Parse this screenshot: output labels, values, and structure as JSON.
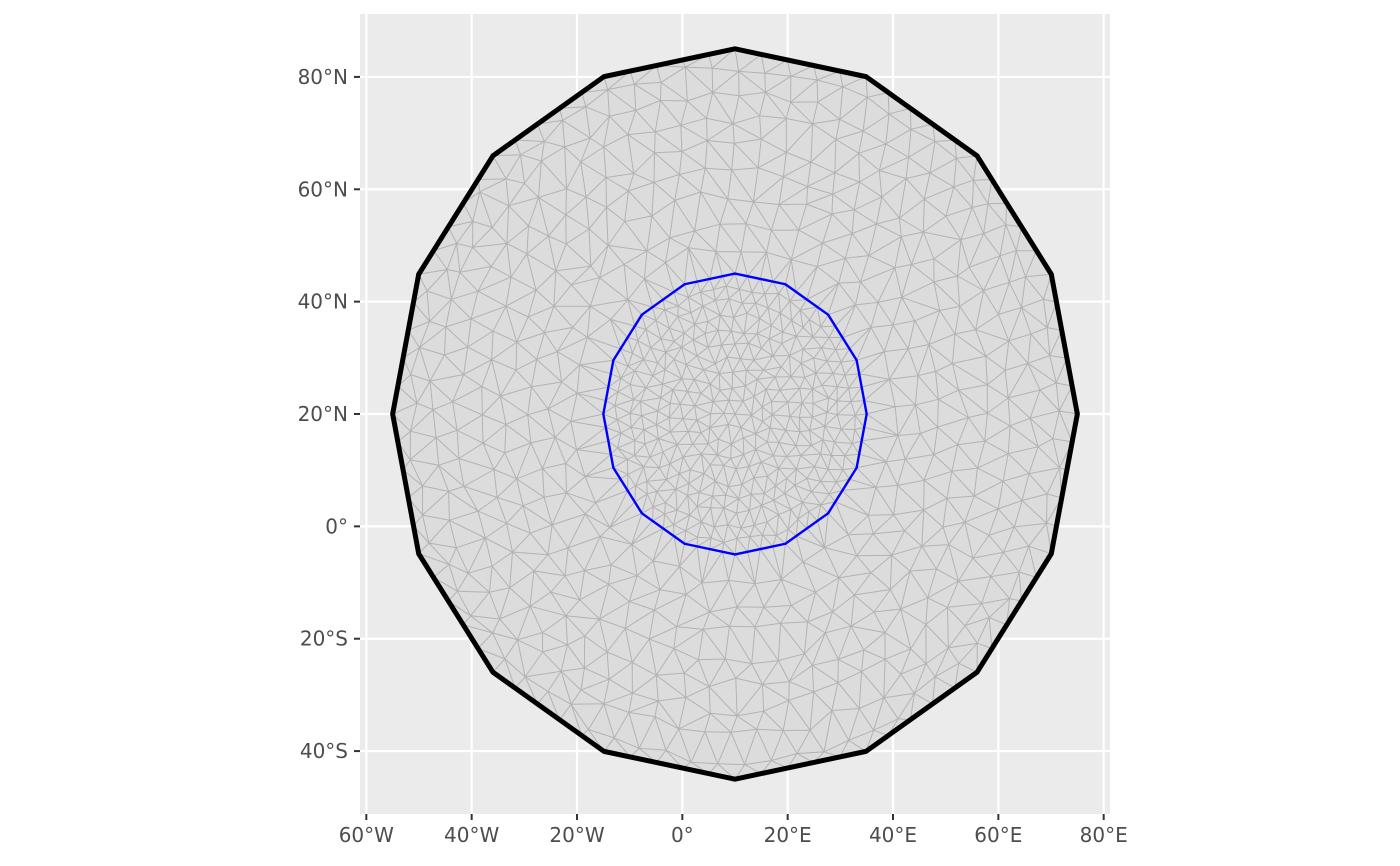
{
  "chart_data": {
    "type": "map",
    "title": "",
    "xlabel": "",
    "ylabel": "",
    "xlim": [
      -61.2,
      81.2
    ],
    "ylim": [
      -51.2,
      91.2
    ],
    "x_ticks": [
      {
        "value": -60,
        "label": "60°W"
      },
      {
        "value": -40,
        "label": "40°W"
      },
      {
        "value": -20,
        "label": "20°W"
      },
      {
        "value": 0,
        "label": "0°"
      },
      {
        "value": 20,
        "label": "20°E"
      },
      {
        "value": 40,
        "label": "40°E"
      },
      {
        "value": 60,
        "label": "60°E"
      },
      {
        "value": 80,
        "label": "80°E"
      }
    ],
    "y_ticks": [
      {
        "value": 80,
        "label": "80°N"
      },
      {
        "value": 60,
        "label": "60°N"
      },
      {
        "value": 40,
        "label": "40°N"
      },
      {
        "value": 20,
        "label": "20°N"
      },
      {
        "value": 0,
        "label": "0°"
      },
      {
        "value": -20,
        "label": "20°S"
      },
      {
        "value": -40,
        "label": "40°S"
      }
    ],
    "grid": true,
    "outer_boundary": {
      "shape": "polygon",
      "center": [
        10,
        20
      ],
      "radius_deg": 65,
      "sides": 16,
      "color": "#000000"
    },
    "inner_boundary": {
      "shape": "polygon",
      "center": [
        10,
        20
      ],
      "radius_deg": 25,
      "sides": 16,
      "color": "#0000ff"
    },
    "mesh": {
      "fill": "#dcdcdc",
      "edge_color": "#b3b3b3",
      "inner_resolution_deg": 2.5,
      "outer_resolution_deg": 5
    },
    "colors": {
      "panel_background": "#ebebeb",
      "gridline": "#ffffff",
      "tick_text": "#4d4d4d"
    }
  }
}
